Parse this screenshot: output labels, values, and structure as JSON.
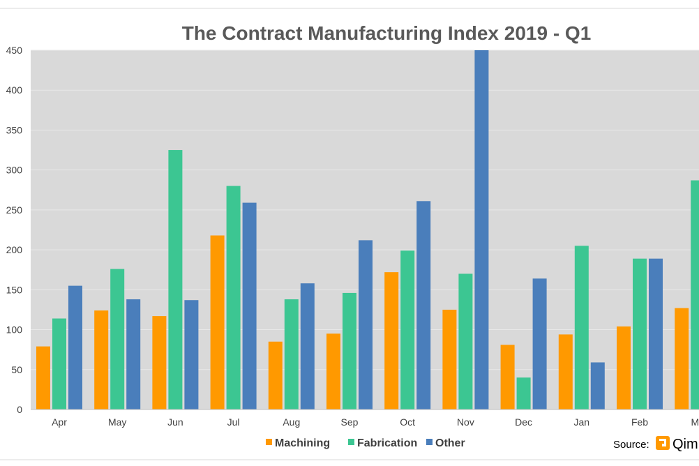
{
  "chart_data": {
    "type": "bar",
    "title": "The Contract Manufacturing Index 2019 - Q1",
    "categories": [
      "Apr",
      "May",
      "Jun",
      "Jul",
      "Aug",
      "Sep",
      "Oct",
      "Nov",
      "Dec",
      "Jan",
      "Feb",
      "Ma"
    ],
    "series": [
      {
        "name": "Machining",
        "color": "#FF9900",
        "values": [
          79,
          124,
          117,
          218,
          85,
          95,
          172,
          125,
          81,
          94,
          104,
          127
        ]
      },
      {
        "name": "Fabrication",
        "color": "#3CC692",
        "values": [
          114,
          176,
          325,
          280,
          138,
          146,
          199,
          170,
          40,
          205,
          189,
          287
        ]
      },
      {
        "name": "Other",
        "color": "#4A7EBB",
        "values": [
          155,
          138,
          137,
          259,
          158,
          212,
          261,
          450,
          164,
          59,
          189,
          null
        ]
      }
    ],
    "y_ticks": [
      "0",
      "50",
      "100",
      "150",
      "200",
      "250",
      "300",
      "350",
      "400",
      "450"
    ],
    "ylim": [
      0,
      450
    ],
    "xlabel": "",
    "ylabel": "",
    "grid": true,
    "legend": "bottom",
    "plot_background": "#D9D9D9",
    "gridline_color": "#E8E8E8"
  },
  "source": {
    "label": "Source:",
    "logo_text": "Qim",
    "logo_color": "#FF9900"
  }
}
